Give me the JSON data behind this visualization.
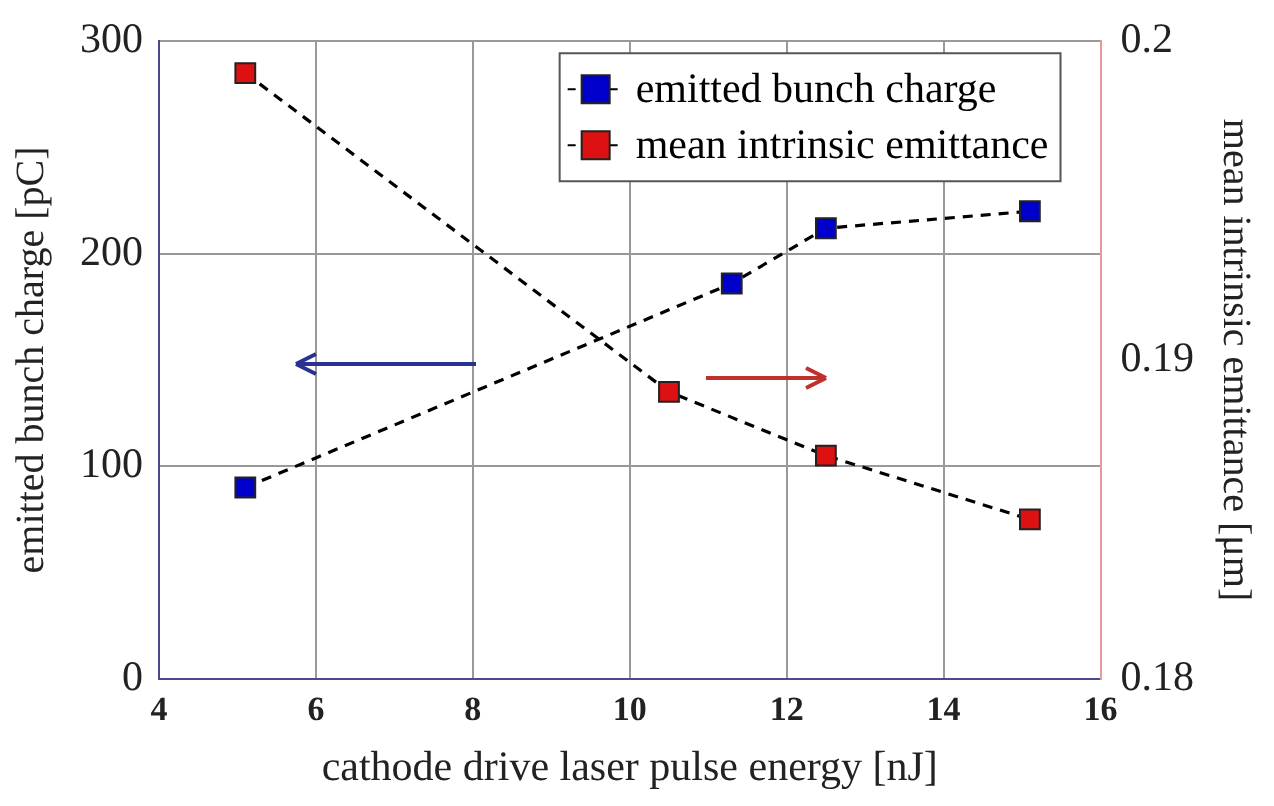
{
  "chart_data": {
    "type": "line",
    "xlabel": "cathode drive laser pulse energy [nJ]",
    "ylabel": "emitted bunch charge [pC]",
    "y2label": "mean intrinsic emittance [μm]",
    "xlim": [
      4,
      16
    ],
    "xticks": [
      4,
      6,
      8,
      10,
      12,
      14,
      16
    ],
    "ylim": [
      0,
      300
    ],
    "yticks": [
      0,
      100,
      200,
      300
    ],
    "y2lim": [
      0.18,
      0.2
    ],
    "y2ticks": [
      0.18,
      0.19,
      0.2
    ],
    "series": [
      {
        "name": "emitted bunch charge",
        "color": "#0000cc",
        "x": [
          5.1,
          11.3,
          12.5,
          15.1
        ],
        "values": [
          90,
          186,
          212,
          220
        ]
      },
      {
        "name": "mean intrinsic emittance",
        "color": "#dd1111",
        "axis": "y2",
        "x": [
          5.1,
          10.5,
          12.5,
          15.1
        ],
        "values": [
          0.199,
          0.189,
          0.187,
          0.185
        ]
      }
    ],
    "grid": true,
    "legend": "top right",
    "marker": "square",
    "line_style": "dashed"
  }
}
